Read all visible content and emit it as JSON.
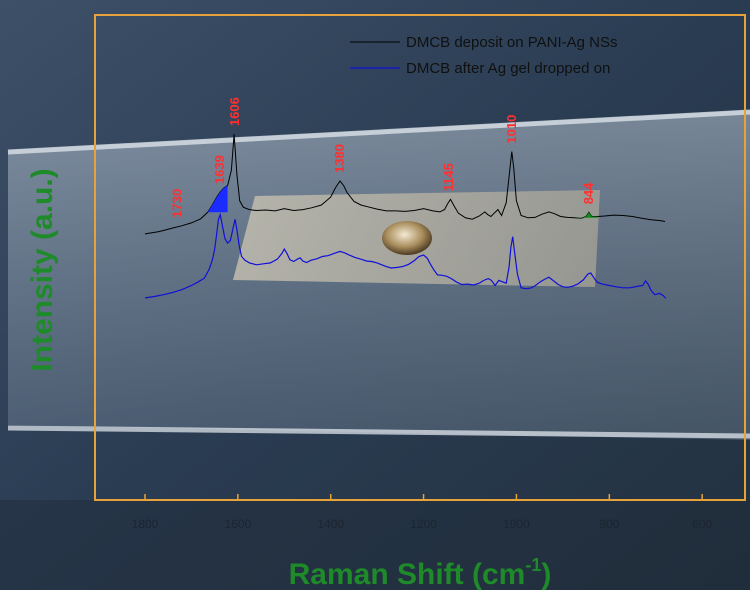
{
  "chart_data": {
    "type": "line",
    "xlabel": "Raman Shift (cm",
    "xlabel_sup": "-1",
    "xlabel_close": ")",
    "ylabel": "Intensity (a.u.)",
    "xlim": [
      1900,
      500
    ],
    "x_reversed": true,
    "x_ticks": [
      1800,
      1600,
      1400,
      1200,
      1000,
      800,
      600
    ],
    "y_ticks_shown": false,
    "grid": false,
    "legend_position": "top-right",
    "colors": {
      "frame": "#e8a23a",
      "series_black": "#000000",
      "series_blue": "#1010d8",
      "peak_label": "#ff3030",
      "axis_title": "#1f8a2a",
      "fill_blue": "#1a2cff",
      "fill_green": "#0c8a1c"
    },
    "series": [
      {
        "name": "DMCB deposit on PANI-Ag NSs",
        "color": "#000000",
        "x": [
          1800,
          1770,
          1740,
          1720,
          1700,
          1680,
          1665,
          1655,
          1645,
          1638,
          1630,
          1622,
          1614,
          1608,
          1602,
          1596,
          1588,
          1575,
          1560,
          1540,
          1520,
          1500,
          1480,
          1460,
          1440,
          1420,
          1400,
          1390,
          1380,
          1372,
          1365,
          1350,
          1335,
          1320,
          1300,
          1280,
          1260,
          1240,
          1220,
          1200,
          1180,
          1165,
          1155,
          1148,
          1142,
          1135,
          1125,
          1110,
          1095,
          1080,
          1068,
          1062,
          1055,
          1048,
          1040,
          1032,
          1022,
          1014,
          1010,
          1006,
          1000,
          990,
          975,
          960,
          945,
          930,
          918,
          905,
          890,
          875,
          860,
          850,
          844,
          838,
          825,
          810,
          790,
          770,
          750,
          730,
          710,
          690,
          680
        ],
        "values": [
          6.1,
          6.6,
          7.4,
          7.9,
          8.5,
          9.4,
          10.8,
          12.4,
          14.2,
          15.2,
          16.1,
          16.6,
          20,
          27.8,
          19,
          13.3,
          11.9,
          11.4,
          11.2,
          11.3,
          11.1,
          11.6,
          11.2,
          11.4,
          11.8,
          12.4,
          14.1,
          16.1,
          17.6,
          16.6,
          15.1,
          13.2,
          12.4,
          12,
          11.5,
          11.1,
          11.1,
          11,
          11.2,
          11.6,
          11.1,
          10.9,
          11.4,
          12.7,
          13.6,
          12.3,
          10.6,
          9.6,
          9.3,
          10,
          10.9,
          10.3,
          9.9,
          10.6,
          11.4,
          10.1,
          12.9,
          20.2,
          24,
          20.5,
          13.3,
          10.1,
          9.6,
          9.7,
          10.4,
          10.9,
          10.5,
          9.9,
          9.7,
          9.6,
          9.5,
          9.9,
          10.8,
          9.9,
          9.9,
          10,
          10.2,
          10.1,
          9.9,
          9.5,
          9.2,
          9,
          8.8
        ]
      },
      {
        "name": "DMCB after Ag gel dropped on",
        "color": "#1010d8",
        "x": [
          1800,
          1780,
          1760,
          1740,
          1720,
          1700,
          1685,
          1672,
          1662,
          1655,
          1650,
          1646,
          1642,
          1638,
          1633,
          1628,
          1622,
          1616,
          1610,
          1606,
          1602,
          1597,
          1592,
          1585,
          1575,
          1560,
          1545,
          1530,
          1515,
          1505,
          1500,
          1494,
          1488,
          1480,
          1472,
          1466,
          1460,
          1452,
          1442,
          1430,
          1418,
          1405,
          1392,
          1380,
          1370,
          1360,
          1348,
          1335,
          1322,
          1312,
          1300,
          1290,
          1280,
          1270,
          1258,
          1245,
          1232,
          1220,
          1210,
          1200,
          1192,
          1185,
          1178,
          1170,
          1160,
          1150,
          1140,
          1130,
          1118,
          1105,
          1092,
          1080,
          1072,
          1066,
          1060,
          1054,
          1046,
          1038,
          1030,
          1022,
          1016,
          1012,
          1008,
          1004,
          998,
          990,
          980,
          970,
          960,
          950,
          940,
          930,
          920,
          910,
          900,
          890,
          880,
          868,
          856,
          846,
          840,
          834,
          826,
          815,
          800,
          785,
          770,
          755,
          740,
          728,
          722,
          716,
          710,
          702,
          692,
          684,
          678
        ],
        "values": [
          -7.8,
          -7.5,
          -7.1,
          -6.6,
          -6,
          -5.1,
          -4.3,
          -3.5,
          -1.6,
          0.4,
          2.7,
          5.8,
          9.2,
          10.3,
          7.8,
          5.1,
          4.1,
          4.7,
          7.5,
          9.3,
          7,
          3.4,
          1.2,
          0.4,
          -0.2,
          -0.6,
          -0.4,
          -0.2,
          0.6,
          1.9,
          2.8,
          1.8,
          0.5,
          0.1,
          0.6,
          0.9,
          0.2,
          -0.1,
          0.4,
          0.7,
          1.2,
          1.4,
          1.9,
          2.3,
          2,
          1.5,
          1,
          0.6,
          0.2,
          0.1,
          -0.2,
          -0.6,
          -1,
          -1.3,
          -1.2,
          -1,
          -0.5,
          0.3,
          1.2,
          1.5,
          0.8,
          -0.5,
          -1.7,
          -2.8,
          -2.9,
          -3.1,
          -3.6,
          -4.3,
          -4.9,
          -4.8,
          -5,
          -4.6,
          -4.1,
          -3.8,
          -3.6,
          -4,
          -5.1,
          -4,
          -4.3,
          -4.6,
          -1.2,
          3.2,
          5.5,
          2.1,
          -2.6,
          -5.6,
          -5.8,
          -5.7,
          -5.2,
          -4.4,
          -3.8,
          -3.3,
          -4.1,
          -4.9,
          -5.4,
          -5.5,
          -5.3,
          -4.8,
          -3.9,
          -2.6,
          -2.4,
          -3.3,
          -4.4,
          -4.8,
          -5.1,
          -5.4,
          -5.6,
          -5.6,
          -5.3,
          -5.1,
          -4.1,
          -4.9,
          -6.2,
          -7.1,
          -6.8,
          -7.3,
          -7.9
        ]
      }
    ],
    "peak_labels": [
      {
        "text": "1730",
        "x": 1730,
        "y": 7.9,
        "series": 0
      },
      {
        "text": "1639",
        "x": 1639,
        "y": 15.2,
        "series": 0
      },
      {
        "text": "1606",
        "x": 1606,
        "y": 27.8,
        "series": 0
      },
      {
        "text": "1380",
        "x": 1380,
        "y": 17.6,
        "series": 0
      },
      {
        "text": "1145",
        "x": 1145,
        "y": 13.6,
        "series": 0
      },
      {
        "text": "1010",
        "x": 1010,
        "y": 24,
        "series": 0
      },
      {
        "text": "844",
        "x": 844,
        "y": 10.8,
        "series": 0
      }
    ],
    "highlighted_peaks": [
      {
        "x": 1639,
        "color": "blue"
      },
      {
        "x": 844,
        "color": "green"
      }
    ]
  }
}
